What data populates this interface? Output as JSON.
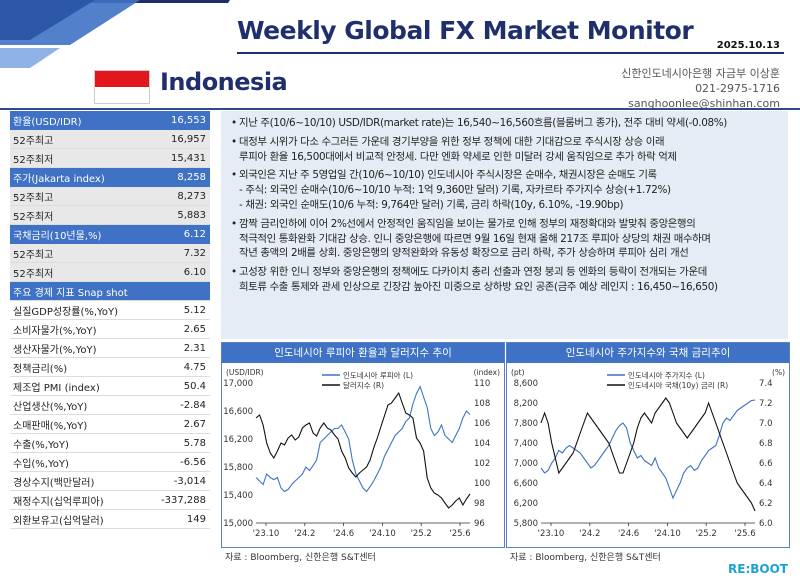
{
  "header": {
    "title": "Weekly Global FX Market Monitor",
    "date": "2025.10.13",
    "country": "Indonesia",
    "author_lines": [
      "신한인도네시아은행 자금부 이상훈",
      "021-2975-1716",
      "sanghoonlee@shinhan.com"
    ],
    "flag_colors": {
      "top": "#e3161b",
      "bottom": "#ffffff"
    }
  },
  "sidebar": {
    "rows": [
      {
        "label": "환율(USD/IDR)",
        "value": "16,553",
        "style": "hd"
      },
      {
        "label": "52주최고",
        "value": "16,957",
        "style": "sub"
      },
      {
        "label": "52주최저",
        "value": "15,431",
        "style": "sub"
      },
      {
        "label": "주가(Jakarta index)",
        "value": "8,258",
        "style": "hd"
      },
      {
        "label": "52주최고",
        "value": "8,273",
        "style": "sub"
      },
      {
        "label": "52주최저",
        "value": "5,883",
        "style": "sub"
      },
      {
        "label": "국채금리(10년물,%)",
        "value": "6.12",
        "style": "hd"
      },
      {
        "label": "52주최고",
        "value": "7.32",
        "style": "sub"
      },
      {
        "label": "52주최저",
        "value": "6.10",
        "style": "sub"
      },
      {
        "label": "주요 경제 지표 Snap shot",
        "value": "",
        "style": "snap"
      },
      {
        "label": "실질GDP성장률(%,YoY)",
        "value": "5.12",
        "style": ""
      },
      {
        "label": "소비자물가(%,YoY)",
        "value": "2.65",
        "style": ""
      },
      {
        "label": "생산자물가(%,YoY)",
        "value": "2.31",
        "style": ""
      },
      {
        "label": "정책금리(%)",
        "value": "4.75",
        "style": ""
      },
      {
        "label": "제조업 PMI (index)",
        "value": "50.4",
        "style": ""
      },
      {
        "label": "산업생산(%,YoY)",
        "value": "-2.84",
        "style": ""
      },
      {
        "label": "소매판매(%,YoY)",
        "value": "2.67",
        "style": ""
      },
      {
        "label": "수출(%,YoY)",
        "value": "5.78",
        "style": ""
      },
      {
        "label": "수입(%,YoY)",
        "value": "-6.56",
        "style": ""
      },
      {
        "label": "경상수지(백만달러)",
        "value": "-3,014",
        "style": ""
      },
      {
        "label": "재정수지(십억루피아)",
        "value": "-337,288",
        "style": ""
      },
      {
        "label": "외환보유고(십억달러)",
        "value": "149",
        "style": ""
      }
    ]
  },
  "commentary": [
    {
      "type": "b",
      "text": "지난 주(10/6~10/10) USD/IDR(market rate)는 16,540~16,560흐름(블룸버그 종가), 전주 대비 약세(-0.08%)"
    },
    {
      "type": "b",
      "text": "대정부 시위가 다소 수그러든 가운데 경기부양을 위한 정부 정책에 대한 기대감으로 주식시장 상승 이래"
    },
    {
      "type": "c",
      "text": "루피아 환율 16,500대에서 비교적 안정세. 다만 엔화 약세로 인한 미달러 강세 움직임으로 추가 하락 억제"
    },
    {
      "type": "b",
      "text": "외국인은 지난 주 5영업일 간(10/6~10/10) 인도네시아 주식시장은 순매수, 채권시장은 순매도 기록"
    },
    {
      "type": "c",
      "text": " - 주식: 외국인 순매수(10/6~10/10 누적: 1억 9,360만 달러) 기록, 자카르타 주가지수 상승(+1.72%)"
    },
    {
      "type": "c",
      "text": " - 채권: 외국인 순매도(10/6 누적: 9,764만 달러) 기록, 금리 하락(10y, 6.10%, -19.90bp)"
    },
    {
      "type": "b",
      "text": "깜짝 금리인하에 이어 2%선에서 안정적인 움직임을 보이는 물가로 인해 정부의 재정확대와 발맞춰 중앙은행의"
    },
    {
      "type": "c",
      "text": "적극적인 통화완화 기대감 상승. 인니 중앙은행에 따르면 9월 16일 현재 올해 217조 루피아 상당의 채권 매수하며"
    },
    {
      "type": "c",
      "text": "작년 총액의 2배를 상회. 중앙은행의 양적완화와 유동성 확장으로 금리 하락, 주가 상승하며 루피아 심리 개선"
    },
    {
      "type": "b",
      "text": "고성장 위한 인니 정부와 중앙은행의 정책에도 다카이치 총리 선출과 연정 붕괴 등 엔화의 등락이 전개되는 가운데"
    },
    {
      "type": "c",
      "text": "희토류 수출 통제와 관세 인상으로 긴장감 높아진 미중으로 상하방 요인 공존(금주 예상 레인지 : 16,450~16,650)"
    }
  ],
  "charts": [
    {
      "title": "인도네시아 루피아 환율과 달러지수 추이",
      "source": "자료 : Bloomberg, 신한은행 S&T센터",
      "left_unit": "(USD/IDR)",
      "right_unit": "(index)",
      "colors": {
        "a": "#3f72c4",
        "b": "#111111"
      }
    },
    {
      "title": "인도네시아 주가지수와 국채 금리추이",
      "source": "자료 : Bloomberg, 신한은행 S&T센터",
      "left_unit": "(pt)",
      "right_unit": "(%)",
      "colors": {
        "a": "#3f72c4",
        "b": "#111111"
      }
    }
  ],
  "chart_data": [
    {
      "type": "line",
      "x_ticks": [
        "'23.10",
        "'24.2",
        "'24.6",
        "'24.10",
        "'25.2",
        "'25.6"
      ],
      "ylim": [
        15000,
        17000
      ],
      "y_ticks": [
        "17,000",
        "16,600",
        "16,200",
        "15,800",
        "15,400",
        "15,000"
      ],
      "y2lim": [
        96,
        110
      ],
      "y2_ticks": [
        "110",
        "108",
        "106",
        "104",
        "102",
        "100",
        "98",
        "96"
      ],
      "series": [
        {
          "name": "인도네시아 루피아 (L)",
          "axis": "left",
          "values": [
            15650,
            15600,
            15550,
            15700,
            15650,
            15620,
            15650,
            15500,
            15450,
            15480,
            15550,
            15600,
            15650,
            15700,
            15800,
            15750,
            15820,
            15900,
            16150,
            16200,
            16250,
            16300,
            16350,
            16350,
            16400,
            16300,
            16200,
            15900,
            15700,
            15600,
            15500,
            15450,
            15520,
            15600,
            15700,
            15800,
            15950,
            16050,
            16150,
            16250,
            16300,
            16350,
            16450,
            16500,
            16700,
            16850,
            16950,
            16800,
            16650,
            16350,
            16250,
            16300,
            16400,
            16250,
            16200,
            16150,
            16250,
            16350,
            16500,
            16600,
            16550
          ]
        },
        {
          "name": "달러지수 (R)",
          "axis": "right",
          "values": [
            106.5,
            106.8,
            105.8,
            104,
            103,
            102.5,
            103.2,
            104,
            103.8,
            104.5,
            104.8,
            104.3,
            104.6,
            105.5,
            105.8,
            106,
            105,
            104.7,
            105.5,
            106,
            105.5,
            105.3,
            104.8,
            104.4,
            103.2,
            102.5,
            101.5,
            101,
            100.6,
            101,
            101.3,
            101.6,
            102.3,
            103.5,
            104.5,
            105.6,
            106.7,
            107.8,
            108,
            108.5,
            109,
            108,
            107,
            106.8,
            106.5,
            104.5,
            104,
            103.2,
            100.5,
            99.5,
            99,
            98.8,
            98.5,
            98,
            97.5,
            97.8,
            98.2,
            98.5,
            97.8,
            98.4,
            98.9
          ]
        }
      ]
    },
    {
      "type": "line",
      "x_ticks": [
        "'23.10",
        "'24.2",
        "'24.6",
        "'24.10",
        "'25.2",
        "'25.6"
      ],
      "ylim": [
        5800,
        8600
      ],
      "y_ticks": [
        "8,600",
        "8,200",
        "7,800",
        "7,400",
        "7,000",
        "6,600",
        "6,200",
        "5,800"
      ],
      "y2lim": [
        6.0,
        7.4
      ],
      "y2_ticks": [
        "7.4",
        "7.2",
        "7.0",
        "6.8",
        "6.6",
        "6.4",
        "6.2",
        "6.0"
      ],
      "series": [
        {
          "name": "인도네시아 주가지수 (L)",
          "axis": "left",
          "values": [
            6900,
            6800,
            6850,
            7000,
            7100,
            7250,
            7200,
            7300,
            7350,
            7300,
            7250,
            7200,
            7100,
            7000,
            6900,
            6950,
            7050,
            7150,
            7250,
            7350,
            7500,
            7650,
            7750,
            7800,
            7700,
            7400,
            7250,
            7100,
            7150,
            7050,
            7000,
            6950,
            7100,
            6900,
            6800,
            6700,
            6500,
            6300,
            6450,
            6600,
            6800,
            6900,
            6950,
            6850,
            6900,
            7050,
            7150,
            7250,
            7300,
            7350,
            7550,
            7800,
            7900,
            7850,
            7950,
            8050,
            8100,
            8150,
            8200,
            8250,
            8258
          ]
        },
        {
          "name": "인도네시아 국채(10y) 금리 (R)",
          "axis": "right",
          "values": [
            7.0,
            7.1,
            7.0,
            6.8,
            6.65,
            6.5,
            6.55,
            6.6,
            6.65,
            6.7,
            6.8,
            6.9,
            7.0,
            7.1,
            7.05,
            7.0,
            6.95,
            6.9,
            6.85,
            6.8,
            6.7,
            6.6,
            6.5,
            6.5,
            6.6,
            6.7,
            6.8,
            6.95,
            7.05,
            7.1,
            7.05,
            7.0,
            7.1,
            7.15,
            7.2,
            7.25,
            7.2,
            7.1,
            7.0,
            6.95,
            6.9,
            6.85,
            6.9,
            6.95,
            7.0,
            7.05,
            7.1,
            7.2,
            7.1,
            7.0,
            6.9,
            6.8,
            6.7,
            6.6,
            6.5,
            6.4,
            6.35,
            6.3,
            6.25,
            6.2,
            6.12
          ]
        }
      ]
    }
  ],
  "footer": {
    "brand": "RE:BOOT"
  }
}
